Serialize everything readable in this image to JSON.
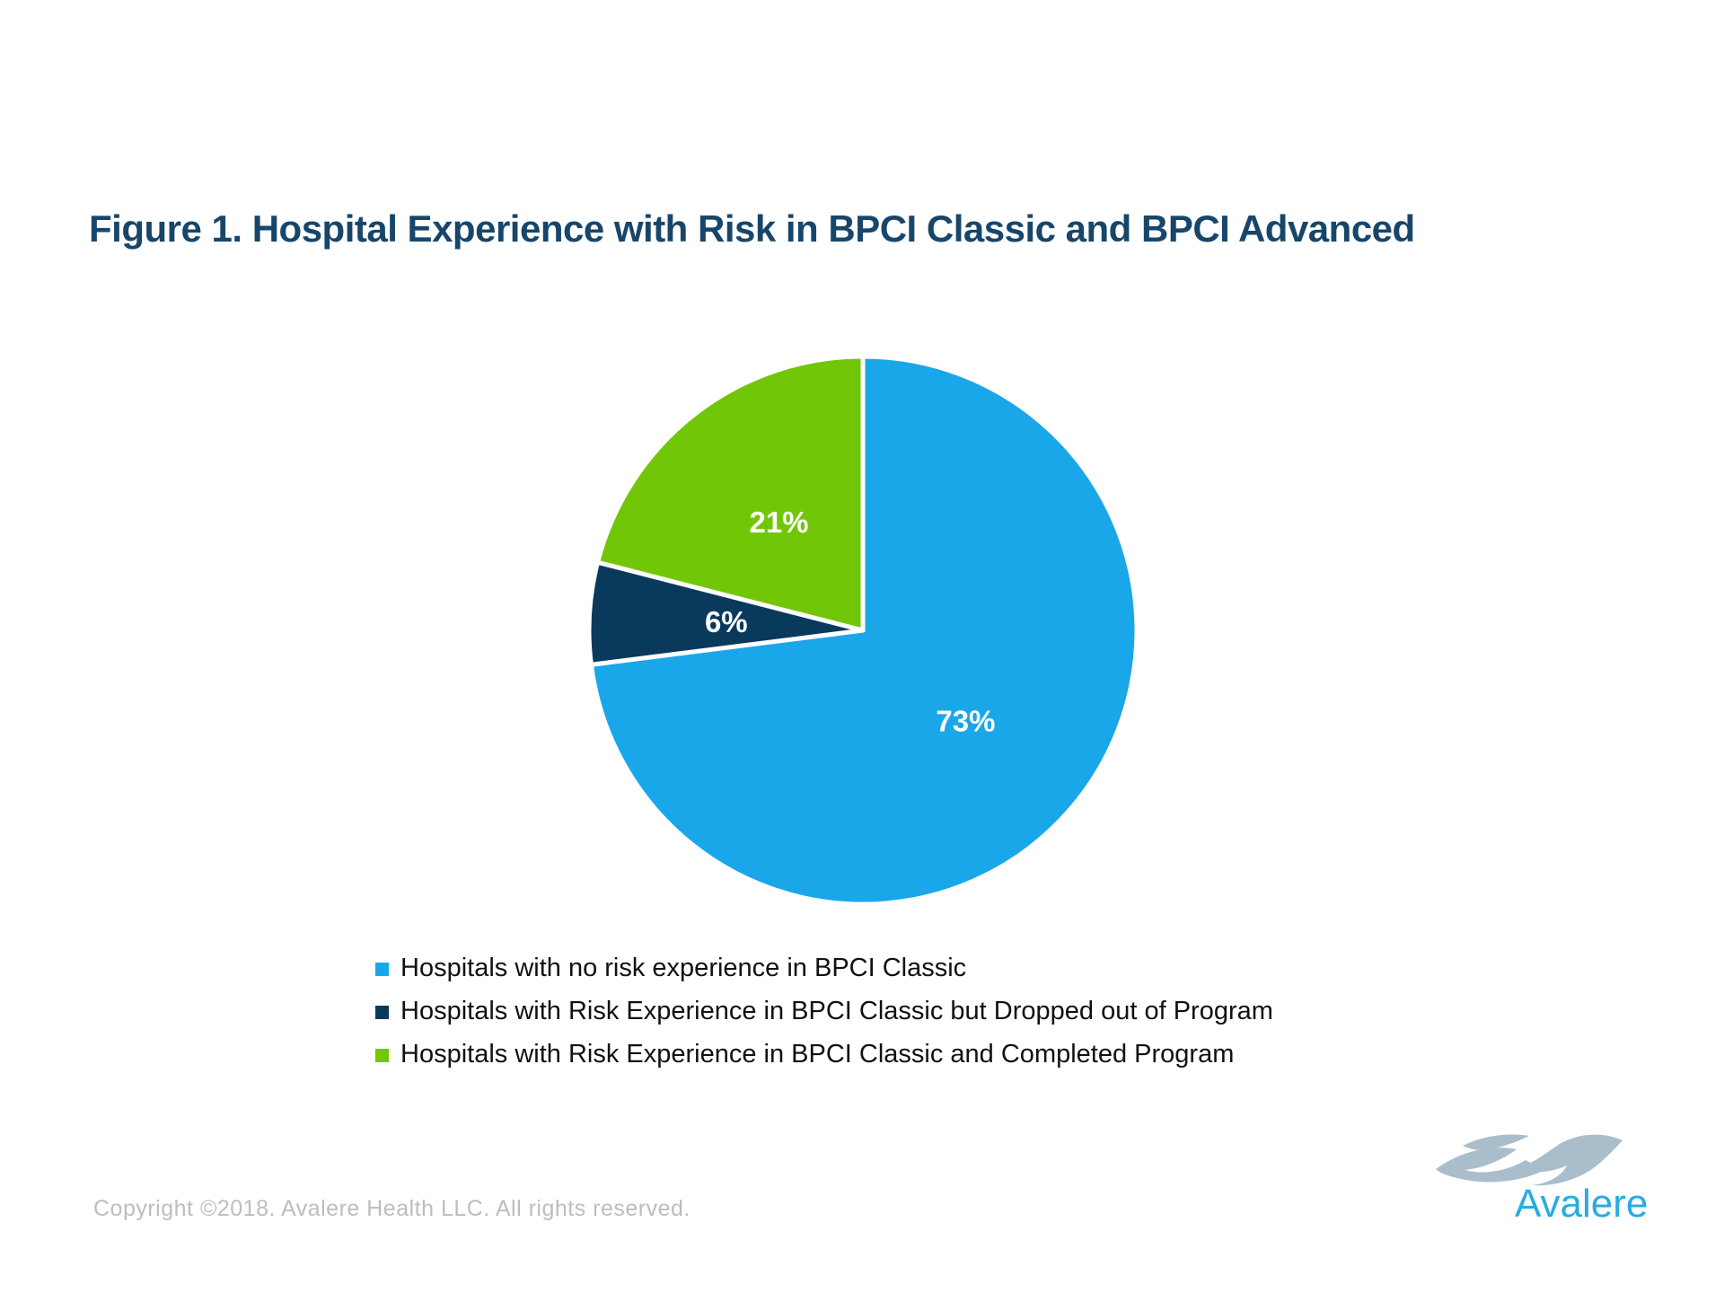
{
  "title": "Figure 1. Hospital Experience with Risk in BPCI Classic and BPCI Advanced",
  "chart_data": {
    "type": "pie",
    "title": "Figure 1. Hospital Experience with Risk in BPCI Classic and BPCI Advanced",
    "start_angle_deg": 0,
    "direction": "clockwise",
    "legend_position": "bottom-left",
    "slice_label_color": "#FFFFFF",
    "slices": [
      {
        "label": "Hospitals with no risk experience in BPCI Classic",
        "value": 73,
        "label_text": "73%",
        "color": "#1AA7E9"
      },
      {
        "label": "Hospitals with Risk Experience in BPCI Classic but Dropped out of Program",
        "value": 6,
        "label_text": "6%",
        "color": "#0A3A5B"
      },
      {
        "label": "Hospitals with Risk Experience in BPCI Classic and Completed Program",
        "value": 21,
        "label_text": "21%",
        "color": "#72C608"
      }
    ]
  },
  "footer": {
    "copyright": "Copyright ©2018. Avalere Health LLC. All rights reserved."
  },
  "logo": {
    "text": "Avalere",
    "wordmark_color": "#29ABE2",
    "swoosh_color": "#AABDCB"
  },
  "colors": {
    "title": "#17466A",
    "legend_text": "#111111",
    "copyright_text": "#BDBDBD",
    "pie_divider": "#FFFFFF",
    "background": "#FFFFFF"
  }
}
